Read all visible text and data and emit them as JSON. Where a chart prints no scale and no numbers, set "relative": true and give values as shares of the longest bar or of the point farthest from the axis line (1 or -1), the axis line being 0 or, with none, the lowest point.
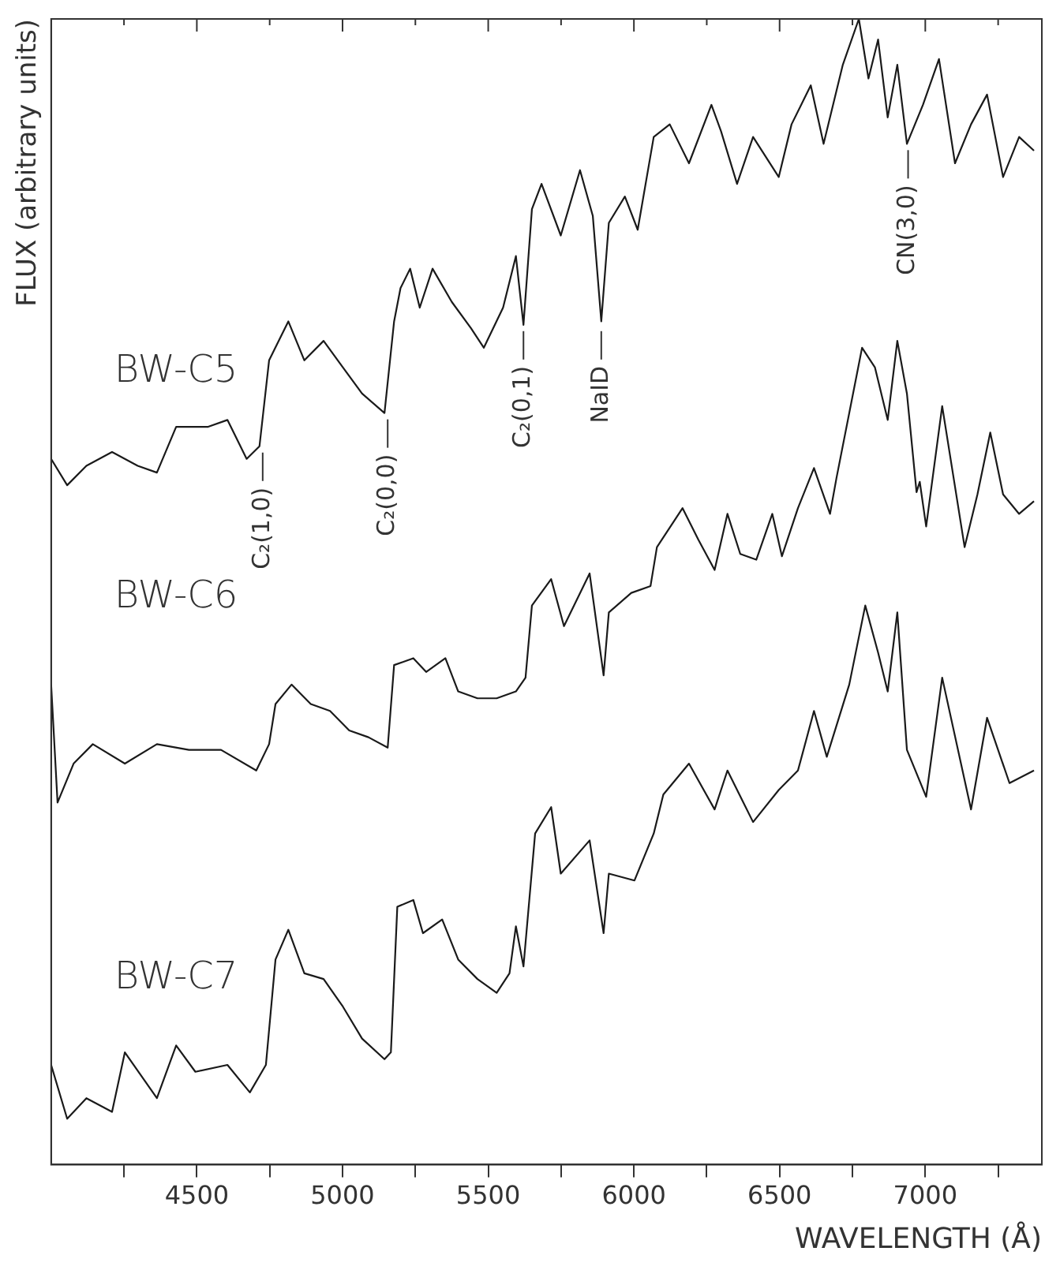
{
  "chart_data": {
    "type": "line",
    "relative": true,
    "xlabel": "WAVELENGTH (Å)",
    "ylabel": "FLUX (arbitrary units)",
    "xlim": [
      4000,
      7400
    ],
    "xticks": [
      {
        "value": 4250,
        "label": null
      },
      4500,
      {
        "value": 4750,
        "label": null
      },
      5000,
      {
        "value": 5250,
        "label": null
      },
      5500,
      {
        "value": 5750,
        "label": null
      },
      6000,
      {
        "value": 6250,
        "label": null
      },
      6500,
      {
        "value": 6750,
        "label": null
      },
      7000,
      {
        "value": 7250,
        "label": null
      }
    ],
    "grid": false,
    "legend": false,
    "marker": "none",
    "line_style": "solid",
    "series": [
      {
        "name": "BW-C5",
        "color": "#1a1a1a",
        "x": [
          4000,
          4055,
          4121,
          4209,
          4297,
          4363,
          4429,
          4539,
          4605,
          4671,
          4715,
          4748,
          4814,
          4869,
          4935,
          5001,
          5067,
          5144,
          5177,
          5199,
          5232,
          5265,
          5309,
          5375,
          5441,
          5485,
          5551,
          5595,
          5621,
          5650,
          5683,
          5749,
          5815,
          5859,
          5888,
          5914,
          5969,
          6013,
          6068,
          6123,
          6189,
          6266,
          6299,
          6354,
          6409,
          6497,
          6541,
          6607,
          6651,
          6717,
          6772,
          6805,
          6838,
          6871,
          6904,
          6937,
          6992,
          7047,
          7102,
          7157,
          7212,
          7267,
          7322,
          7373
        ],
        "values": [
          0.616,
          0.593,
          0.61,
          0.622,
          0.61,
          0.604,
          0.644,
          0.644,
          0.65,
          0.616,
          0.627,
          0.702,
          0.736,
          0.702,
          0.719,
          0.696,
          0.673,
          0.656,
          0.736,
          0.765,
          0.782,
          0.748,
          0.782,
          0.753,
          0.73,
          0.713,
          0.748,
          0.793,
          0.733,
          0.834,
          0.856,
          0.811,
          0.868,
          0.828,
          0.736,
          0.822,
          0.845,
          0.816,
          0.897,
          0.908,
          0.874,
          0.925,
          0.902,
          0.856,
          0.897,
          0.862,
          0.908,
          0.942,
          0.891,
          0.96,
          1.0,
          0.948,
          0.982,
          0.914,
          0.96,
          0.891,
          0.925,
          0.965,
          0.874,
          0.908,
          0.934,
          0.862,
          0.897,
          0.885
        ]
      },
      {
        "name": "BW-C6",
        "color": "#1a1a1a",
        "x": [
          4000,
          4022,
          4077,
          4143,
          4253,
          4363,
          4473,
          4583,
          4704,
          4748,
          4770,
          4825,
          4891,
          4957,
          5023,
          5089,
          5155,
          5177,
          5243,
          5287,
          5353,
          5397,
          5463,
          5529,
          5595,
          5628,
          5650,
          5716,
          5760,
          5848,
          5896,
          5914,
          5991,
          6057,
          6079,
          6167,
          6222,
          6277,
          6321,
          6365,
          6420,
          6475,
          6508,
          6563,
          6618,
          6673,
          6695,
          6783,
          6827,
          6871,
          6904,
          6937,
          6970,
          6981,
          7003,
          7058,
          7135,
          7179,
          7223,
          7267,
          7322,
          7373
        ],
        "values": [
          0.419,
          0.316,
          0.35,
          0.367,
          0.35,
          0.367,
          0.362,
          0.362,
          0.344,
          0.367,
          0.402,
          0.419,
          0.402,
          0.396,
          0.379,
          0.373,
          0.364,
          0.436,
          0.442,
          0.43,
          0.442,
          0.413,
          0.407,
          0.407,
          0.413,
          0.425,
          0.488,
          0.511,
          0.47,
          0.516,
          0.427,
          0.482,
          0.499,
          0.505,
          0.539,
          0.573,
          0.545,
          0.519,
          0.568,
          0.533,
          0.528,
          0.568,
          0.531,
          0.573,
          0.608,
          0.568,
          0.599,
          0.713,
          0.696,
          0.65,
          0.719,
          0.673,
          0.587,
          0.596,
          0.557,
          0.662,
          0.539,
          0.585,
          0.639,
          0.585,
          0.568,
          0.579
        ]
      },
      {
        "name": "BW-C7",
        "color": "#1a1a1a",
        "x": [
          4000,
          4055,
          4121,
          4209,
          4253,
          4363,
          4429,
          4495,
          4605,
          4682,
          4737,
          4770,
          4814,
          4869,
          4935,
          5001,
          5067,
          5144,
          5166,
          5188,
          5243,
          5276,
          5342,
          5397,
          5463,
          5529,
          5573,
          5595,
          5621,
          5661,
          5716,
          5749,
          5848,
          5896,
          5914,
          6002,
          6068,
          6101,
          6189,
          6277,
          6321,
          6409,
          6497,
          6563,
          6618,
          6662,
          6739,
          6794,
          6838,
          6871,
          6904,
          6937,
          7003,
          7058,
          7157,
          7212,
          7289,
          7373
        ],
        "values": [
          0.087,
          0.04,
          0.058,
          0.046,
          0.098,
          0.058,
          0.104,
          0.081,
          0.087,
          0.063,
          0.087,
          0.179,
          0.205,
          0.167,
          0.162,
          0.138,
          0.11,
          0.092,
          0.098,
          0.225,
          0.231,
          0.202,
          0.214,
          0.179,
          0.162,
          0.15,
          0.167,
          0.208,
          0.173,
          0.289,
          0.312,
          0.254,
          0.283,
          0.202,
          0.254,
          0.248,
          0.289,
          0.323,
          0.35,
          0.31,
          0.344,
          0.299,
          0.327,
          0.344,
          0.396,
          0.356,
          0.419,
          0.488,
          0.447,
          0.413,
          0.482,
          0.362,
          0.321,
          0.425,
          0.31,
          0.39,
          0.333,
          0.344
        ]
      }
    ],
    "annotations": [
      {
        "text": "C₂(1,0)",
        "x": 4726,
        "y": 0.627
      },
      {
        "text": "C₂(0,0)",
        "x": 5155,
        "y": 0.656
      },
      {
        "text": "C₂(0,1)",
        "x": 5621,
        "y": 0.733
      },
      {
        "text": "NaID",
        "x": 5888,
        "y": 0.733
      },
      {
        "text": "CN(3,0)",
        "x": 6941,
        "y": 0.891
      }
    ]
  }
}
